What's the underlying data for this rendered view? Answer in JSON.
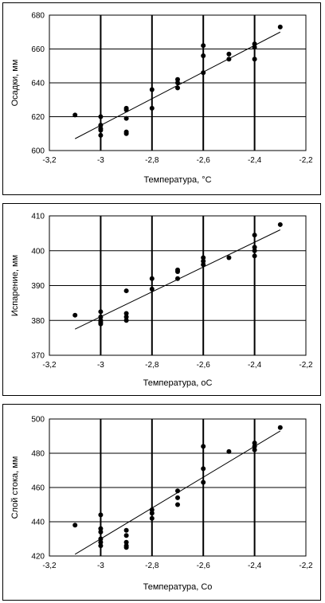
{
  "chart_data": [
    {
      "type": "scatter",
      "title": "",
      "xlabel": "Температура, °С",
      "ylabel": "Осадки, мм",
      "xlim": [
        -3.2,
        -2.2
      ],
      "ylim": [
        600,
        680
      ],
      "xticks": [
        -3.2,
        -3.0,
        -2.8,
        -2.6,
        -2.4,
        -2.2
      ],
      "yticks": [
        600,
        620,
        640,
        660,
        680
      ],
      "xtick_labels": [
        "-3,2",
        "-3",
        "-2,8",
        "-2,6",
        "-2,4",
        "-2,2"
      ],
      "ytick_labels": [
        "600",
        "620",
        "640",
        "660",
        "680"
      ],
      "grid": "vertical+horizontal",
      "points": [
        [
          -3.1,
          621
        ],
        [
          -3.0,
          620
        ],
        [
          -3.0,
          615
        ],
        [
          -3.0,
          613
        ],
        [
          -3.0,
          612
        ],
        [
          -3.0,
          609
        ],
        [
          -2.9,
          625
        ],
        [
          -2.9,
          624
        ],
        [
          -2.9,
          619
        ],
        [
          -2.9,
          611
        ],
        [
          -2.9,
          610
        ],
        [
          -2.8,
          636
        ],
        [
          -2.8,
          625
        ],
        [
          -2.7,
          642
        ],
        [
          -2.7,
          640
        ],
        [
          -2.7,
          637
        ],
        [
          -2.6,
          662
        ],
        [
          -2.6,
          656
        ],
        [
          -2.6,
          646
        ],
        [
          -2.5,
          657
        ],
        [
          -2.5,
          654
        ],
        [
          -2.4,
          663
        ],
        [
          -2.4,
          661
        ],
        [
          -2.4,
          654
        ],
        [
          -2.3,
          673
        ]
      ],
      "trendline": [
        [
          -3.1,
          607
        ],
        [
          -2.3,
          670
        ]
      ]
    },
    {
      "type": "scatter",
      "title": "",
      "xlabel": "Температура, оС",
      "ylabel": "Испарение, мм",
      "xlim": [
        -3.2,
        -2.2
      ],
      "ylim": [
        370,
        410
      ],
      "xticks": [
        -3.2,
        -3.0,
        -2.8,
        -2.6,
        -2.4,
        -2.2
      ],
      "yticks": [
        370,
        380,
        390,
        400,
        410
      ],
      "xtick_labels": [
        "-3,2",
        "-3",
        "-2,8",
        "-2,6",
        "-2,4",
        "-2,2"
      ],
      "ytick_labels": [
        "370",
        "380",
        "390",
        "400",
        "410"
      ],
      "grid": "vertical+horizontal",
      "points": [
        [
          -3.1,
          381.5
        ],
        [
          -3.0,
          382.5
        ],
        [
          -3.0,
          381
        ],
        [
          -3.0,
          380
        ],
        [
          -3.0,
          379.5
        ],
        [
          -3.0,
          379
        ],
        [
          -2.9,
          388.5
        ],
        [
          -2.9,
          382
        ],
        [
          -2.9,
          381
        ],
        [
          -2.9,
          380
        ],
        [
          -2.8,
          392
        ],
        [
          -2.8,
          389
        ],
        [
          -2.7,
          394.5
        ],
        [
          -2.7,
          394
        ],
        [
          -2.7,
          392
        ],
        [
          -2.6,
          398
        ],
        [
          -2.6,
          397
        ],
        [
          -2.6,
          396
        ],
        [
          -2.5,
          398
        ],
        [
          -2.4,
          404.5
        ],
        [
          -2.4,
          401
        ],
        [
          -2.4,
          400
        ],
        [
          -2.4,
          398.5
        ],
        [
          -2.3,
          407.5
        ]
      ],
      "trendline": [
        [
          -3.1,
          377.5
        ],
        [
          -2.3,
          406
        ]
      ]
    },
    {
      "type": "scatter",
      "title": "",
      "xlabel": "Температура, Со",
      "ylabel": "Слой стока, мм",
      "xlim": [
        -3.2,
        -2.2
      ],
      "ylim": [
        420,
        500
      ],
      "xticks": [
        -3.2,
        -3.0,
        -2.8,
        -2.6,
        -2.4,
        -2.2
      ],
      "yticks": [
        420,
        440,
        460,
        480,
        500
      ],
      "xtick_labels": [
        "-3,2",
        "-3",
        "-2,8",
        "-2,6",
        "-2,4",
        "-2,2"
      ],
      "ytick_labels": [
        "420",
        "440",
        "460",
        "480",
        "500"
      ],
      "grid": "vertical+horizontal",
      "points": [
        [
          -3.1,
          438
        ],
        [
          -3.0,
          444
        ],
        [
          -3.0,
          436
        ],
        [
          -3.0,
          434
        ],
        [
          -3.0,
          430
        ],
        [
          -3.0,
          428
        ],
        [
          -3.0,
          426
        ],
        [
          -2.9,
          435
        ],
        [
          -2.9,
          432
        ],
        [
          -2.9,
          428
        ],
        [
          -2.9,
          426
        ],
        [
          -2.9,
          425
        ],
        [
          -2.8,
          447
        ],
        [
          -2.8,
          445
        ],
        [
          -2.8,
          442
        ],
        [
          -2.7,
          458
        ],
        [
          -2.7,
          454
        ],
        [
          -2.7,
          450
        ],
        [
          -2.6,
          484
        ],
        [
          -2.6,
          471
        ],
        [
          -2.6,
          463
        ],
        [
          -2.5,
          481
        ],
        [
          -2.4,
          486
        ],
        [
          -2.4,
          484
        ],
        [
          -2.4,
          482
        ],
        [
          -2.3,
          495
        ]
      ],
      "trendline": [
        [
          -3.1,
          421
        ],
        [
          -2.3,
          493
        ]
      ]
    }
  ]
}
